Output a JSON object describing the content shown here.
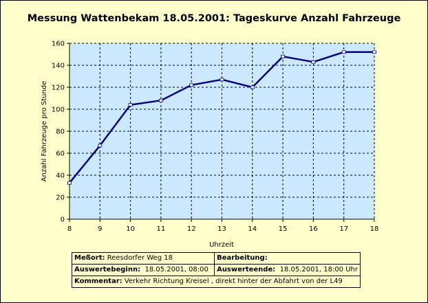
{
  "chart_data": {
    "type": "line",
    "title": "Messung Wattenbekam 18.05.2001: Tageskurve Anzahl Fahrzeuge",
    "xlabel": "Uhrzeit",
    "ylabel": "Anzahl Fahrzeuge pro Stunde",
    "x": [
      8,
      9,
      10,
      11,
      12,
      13,
      14,
      15,
      16,
      17,
      18
    ],
    "values": [
      33,
      67,
      104,
      108,
      122,
      127,
      120,
      148,
      143,
      152,
      152
    ],
    "xlim": [
      8,
      18
    ],
    "ylim": [
      0,
      160
    ],
    "yticks": [
      0,
      20,
      40,
      60,
      80,
      100,
      120,
      140,
      160
    ],
    "xticks": [
      8,
      9,
      10,
      11,
      12,
      13,
      14,
      15,
      16,
      17,
      18
    ],
    "grid": true,
    "legend": "none"
  },
  "colors": {
    "background": "#ffffcc",
    "plot_area": "#cce8ff",
    "line": "#000080",
    "marker": "#ffffff"
  },
  "info": {
    "messort_label": "Meßort:",
    "messort_value": "Reesdorfer Weg 18",
    "bearbeitung_label": "Bearbeitung:",
    "bearbeitung_value": "",
    "beginn_label": "Auswertebeginn:",
    "beginn_value": "18.05.2001, 08:00",
    "ende_label": "Auswerteende:",
    "ende_value": "18.05.2001, 18:00 Uhr",
    "kommentar_label": "Kommentar:",
    "kommentar_value": "Verkehr Richtung Kreisel , direkt hinter der Abfahrt von der L49"
  }
}
